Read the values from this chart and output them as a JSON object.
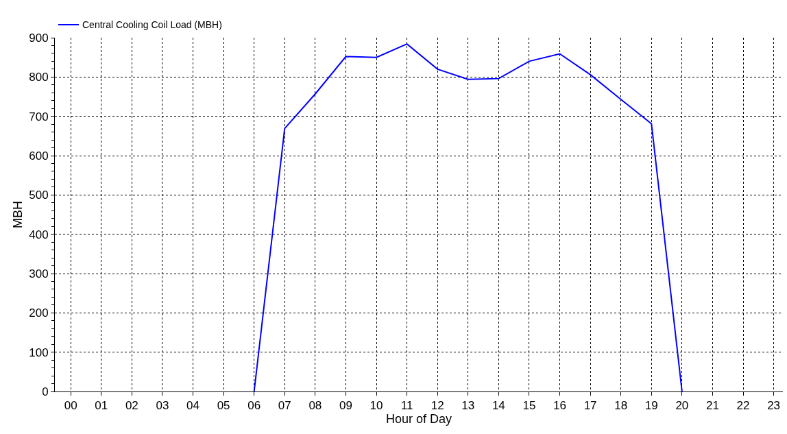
{
  "chart_data": {
    "type": "line",
    "xlabel": "Hour of Day",
    "ylabel": "MBH",
    "categories": [
      "00",
      "01",
      "02",
      "03",
      "04",
      "05",
      "06",
      "07",
      "08",
      "09",
      "10",
      "11",
      "12",
      "13",
      "14",
      "15",
      "16",
      "17",
      "18",
      "19",
      "20",
      "21",
      "22",
      "23"
    ],
    "series": [
      {
        "name": "Central Cooling Coil Load (MBH)",
        "color": "#0000ff",
        "values": [
          null,
          null,
          null,
          null,
          null,
          null,
          0,
          669,
          757,
          852,
          850,
          884,
          820,
          794,
          796,
          840,
          859,
          806,
          743,
          681,
          0,
          null,
          null,
          null
        ]
      }
    ],
    "ylim": [
      0,
      900
    ],
    "yticks": [
      0,
      100,
      200,
      300,
      400,
      500,
      600,
      700,
      800,
      900
    ],
    "grid": true,
    "legend": "top left",
    "marker": "none",
    "line_style": "solid"
  }
}
